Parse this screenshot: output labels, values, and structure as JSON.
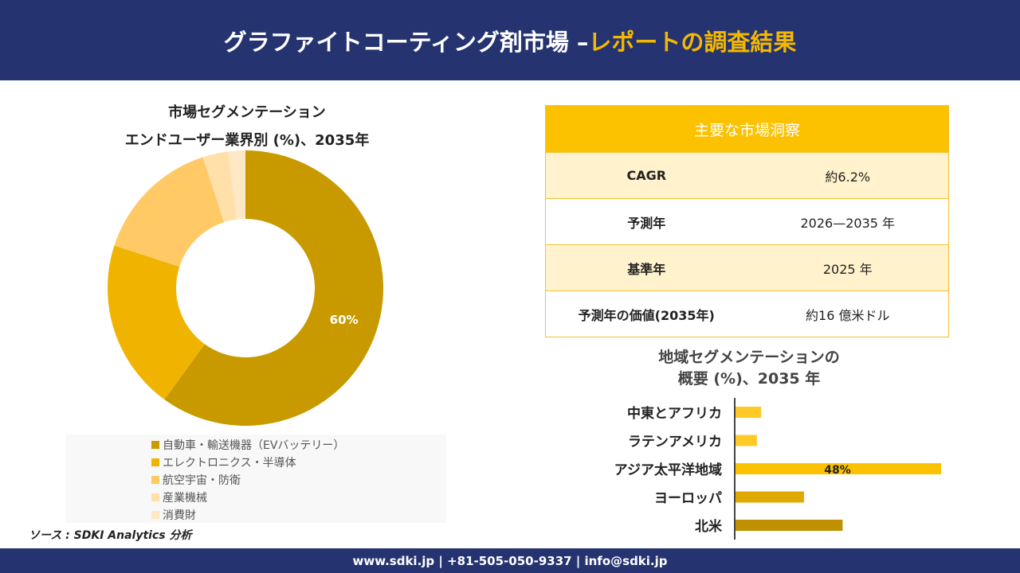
{
  "header": {
    "title_main": "グラファイトコーティング剤市場 –",
    "title_highlight": "レポートの調査結果"
  },
  "footer": {
    "contact": "www.sdki.jp | +81-505-050-9337 | info@sdki.jp"
  },
  "source": "ソース : SDKI Analytics 分析",
  "insights": {
    "title": "主要な市場洞察",
    "rows": [
      {
        "key": "CAGR",
        "value": "約6.2%"
      },
      {
        "key": "予測年",
        "value": "2026—2035 年"
      },
      {
        "key": "基準年",
        "value": "2025 年"
      },
      {
        "key": "予測年の価値(2035年)",
        "value": "約16 億米ドル"
      }
    ]
  },
  "chart_data": [
    {
      "type": "pie",
      "title": "市場セグメンテーション",
      "subtitle": "エンドユーザー業界別 (%)、2035年",
      "categories": [
        "自動車・輸送機器（EVバッテリー）",
        "エレクトロニクス・半導体",
        "航空宇宙・防衛",
        "産業機械",
        "消費財"
      ],
      "values": [
        60,
        20,
        15,
        3,
        2
      ],
      "data_labels": [
        "60%",
        "",
        "",
        "",
        ""
      ],
      "colors": [
        "#c89a00",
        "#f0b400",
        "#ffc966",
        "#ffe0a8",
        "#ffe8c6"
      ],
      "legend": "bottom"
    },
    {
      "type": "bar",
      "orientation": "horizontal",
      "title": "地域セグメンテーションの",
      "subtitle": "概要 (%)、2035 年",
      "categories": [
        "中東とアフリカ",
        "ラテンアメリカ",
        "アジア太平洋地域",
        "ヨーロッパ",
        "北米"
      ],
      "values": [
        6,
        5,
        48,
        16,
        25
      ],
      "data_labels": [
        "",
        "",
        "48%",
        "",
        ""
      ],
      "colors": [
        "#ffc928",
        "#ffc928",
        "#fcc200",
        "#e0aa00",
        "#c09000"
      ]
    }
  ]
}
